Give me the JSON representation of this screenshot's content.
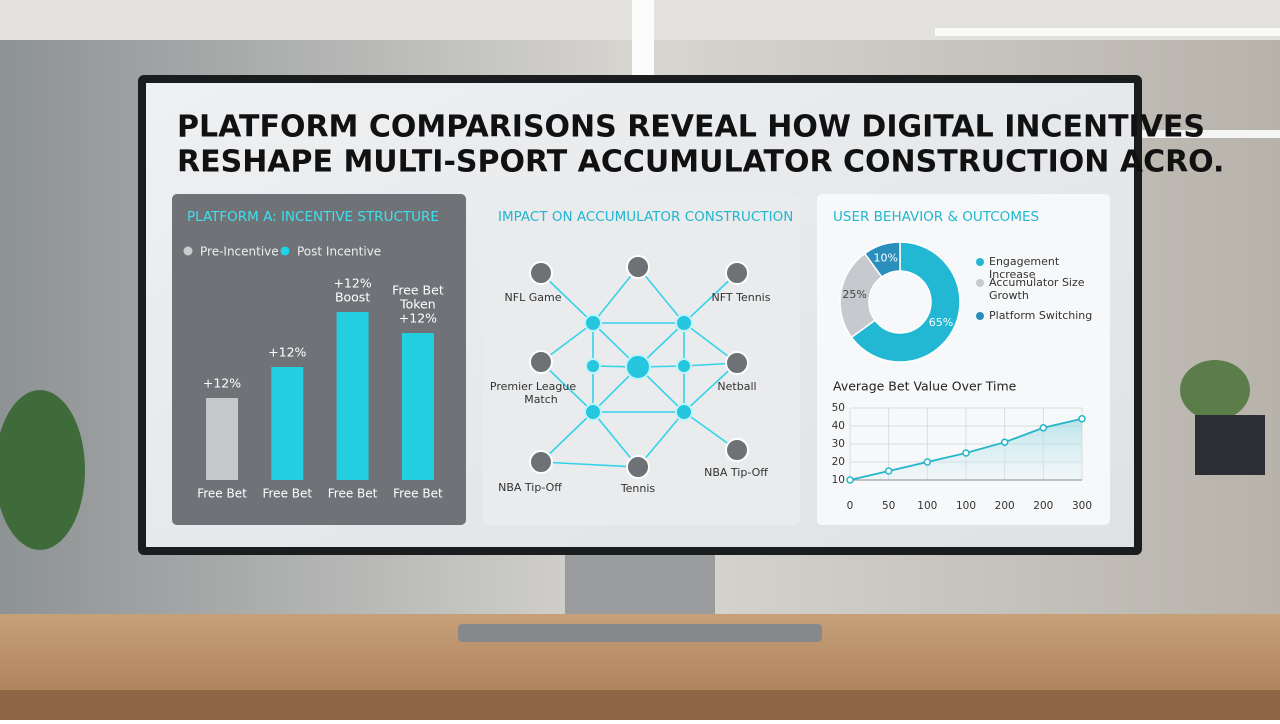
{
  "title": [
    "PLATFORM COMPARISONS REVEAL HOW DIGITAL INCENTIVES",
    "RESHAPE MULTI-SPORT ACCUMULATOR CONSTRUCTION ACRO."
  ],
  "chart_data": [
    {
      "type": "bar",
      "title": "PLATFORM A: INCENTIVE STRUCTURE",
      "categories": [
        "Free Bet",
        "Free Bet",
        "Free Bet",
        "Free Bet"
      ],
      "series": [
        {
          "name": "Pre-Incentive",
          "color": "#c9cbcd",
          "values": [
            82,
            null,
            null,
            null
          ]
        },
        {
          "name": "Post Incentive",
          "color": "#1fd3e6",
          "values": [
            null,
            113,
            168,
            147
          ]
        }
      ],
      "bar_labels": [
        [
          "+12%"
        ],
        [
          "+12%"
        ],
        [
          "+12%",
          "Boost"
        ],
        [
          "Free Bet",
          "Token",
          "+12%"
        ]
      ],
      "ylim": [
        0,
        200
      ]
    },
    {
      "type": "pie",
      "title": "USER BEHAVIOR & OUTCOMES",
      "categories": [
        "Engagement Increase",
        "Accumulator Size Growth",
        "Platform Switching"
      ],
      "values": [
        65,
        25,
        10
      ],
      "value_labels": [
        "65%",
        "25%",
        "10%"
      ],
      "colors": [
        "#22b8d4",
        "#c6cacf",
        "#2a8fbc"
      ]
    },
    {
      "type": "line",
      "title": "Average Bet Value Over Time",
      "categories": [
        "0",
        "50",
        "100",
        "100",
        "200",
        "200",
        "300"
      ],
      "values": [
        10,
        15,
        20,
        25,
        31,
        39,
        44
      ],
      "color": "#25b6cc",
      "ylim": [
        10,
        50
      ],
      "yticks": [
        10,
        20,
        30,
        40,
        50
      ],
      "grid": true
    }
  ],
  "diagram": {
    "title": "IMPACT ON ACCUMULATOR CONSTRUCTION",
    "labels": [
      "NFL Game",
      "NFT Tennis",
      "Premier League",
      "Match",
      "Netball",
      "NBA Tip-Off",
      "Tennis",
      "NBA Tip-Off"
    ]
  }
}
